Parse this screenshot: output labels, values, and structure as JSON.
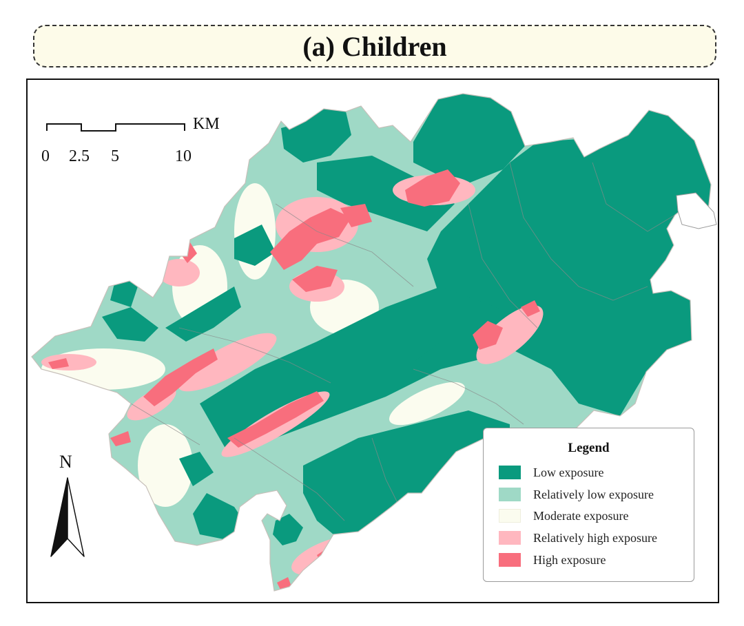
{
  "title": "(a) Children",
  "scale_bar": {
    "ticks": [
      "0",
      "2.5",
      "5",
      "10"
    ],
    "unit": "KM"
  },
  "north_arrow": {
    "label": "N",
    "icon": "north-arrow-icon"
  },
  "legend": {
    "title": "Legend",
    "items": [
      {
        "label": "Low exposure",
        "color": "#0a9a7e"
      },
      {
        "label": "Relatively low exposure",
        "color": "#9fd9c6"
      },
      {
        "label": "Moderate exposure",
        "color": "#fbfcef"
      },
      {
        "label": "Relatively high exposure",
        "color": "#ffb7bf"
      },
      {
        "label": "High exposure",
        "color": "#f86e7d"
      }
    ]
  }
}
